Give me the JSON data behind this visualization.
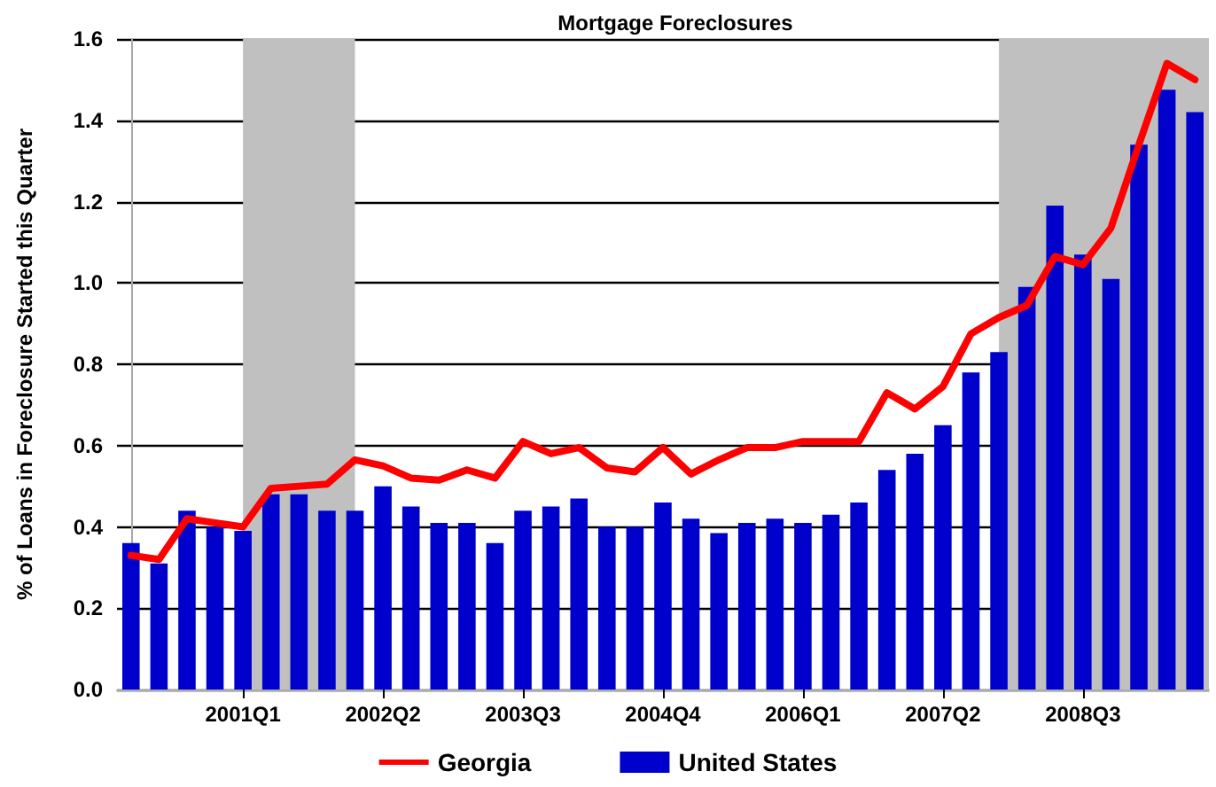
{
  "chart_data": {
    "type": "bar",
    "title": "Mortgage Foreclosures",
    "ylabel": "% of Loans in Foreclosure Started this Quarter",
    "categories": [
      null,
      null,
      null,
      null,
      "2001Q1",
      null,
      null,
      null,
      null,
      "2002Q2",
      null,
      null,
      null,
      null,
      "2003Q3",
      null,
      null,
      null,
      null,
      "2004Q4",
      null,
      null,
      null,
      null,
      "2006Q1",
      null,
      null,
      null,
      null,
      "2007Q2",
      null,
      null,
      null,
      null,
      "2008Q3",
      null,
      null,
      null,
      null
    ],
    "series": [
      {
        "name": "Georgia",
        "type": "line",
        "color": "#ff0000",
        "values": [
          0.33,
          0.32,
          0.42,
          0.41,
          0.4,
          0.495,
          0.5,
          0.505,
          0.565,
          0.55,
          0.52,
          0.515,
          0.54,
          0.52,
          0.61,
          0.58,
          0.595,
          0.545,
          0.535,
          0.595,
          0.53,
          0.565,
          0.595,
          0.595,
          0.61,
          0.61,
          0.61,
          0.73,
          0.69,
          0.745,
          0.875,
          0.915,
          0.945,
          1.065,
          1.045,
          1.135,
          1.34,
          1.54,
          1.5
        ]
      },
      {
        "name": "United States",
        "color": "#0000cc",
        "values": [
          0.36,
          0.31,
          0.44,
          0.4,
          0.39,
          0.48,
          0.48,
          0.44,
          0.44,
          0.5,
          0.45,
          0.41,
          0.41,
          0.36,
          0.44,
          0.45,
          0.47,
          0.4,
          0.4,
          0.46,
          0.42,
          0.385,
          0.41,
          0.42,
          0.41,
          0.43,
          0.46,
          0.54,
          0.58,
          0.65,
          0.78,
          0.83,
          0.99,
          1.19,
          1.07,
          1.01,
          1.34,
          1.475,
          1.42
        ]
      }
    ],
    "ylim": [
      0,
      1.6
    ],
    "yticks": [
      {
        "value": 0,
        "label": "0.0"
      },
      {
        "value": 0.2,
        "label": "0.2"
      },
      {
        "value": 0.4,
        "label": "0.4"
      },
      {
        "value": 0.6,
        "label": "0.6"
      },
      {
        "value": 0.8,
        "label": "0.8"
      },
      {
        "value": 1,
        "label": "1.0"
      },
      {
        "value": 1.2,
        "label": "1.2"
      },
      {
        "value": 1.4,
        "label": "1.4"
      },
      {
        "value": 1.6,
        "label": "1.6"
      }
    ],
    "grid": "y",
    "legend": "bottom",
    "marker": "none",
    "line_style": "solid"
  }
}
